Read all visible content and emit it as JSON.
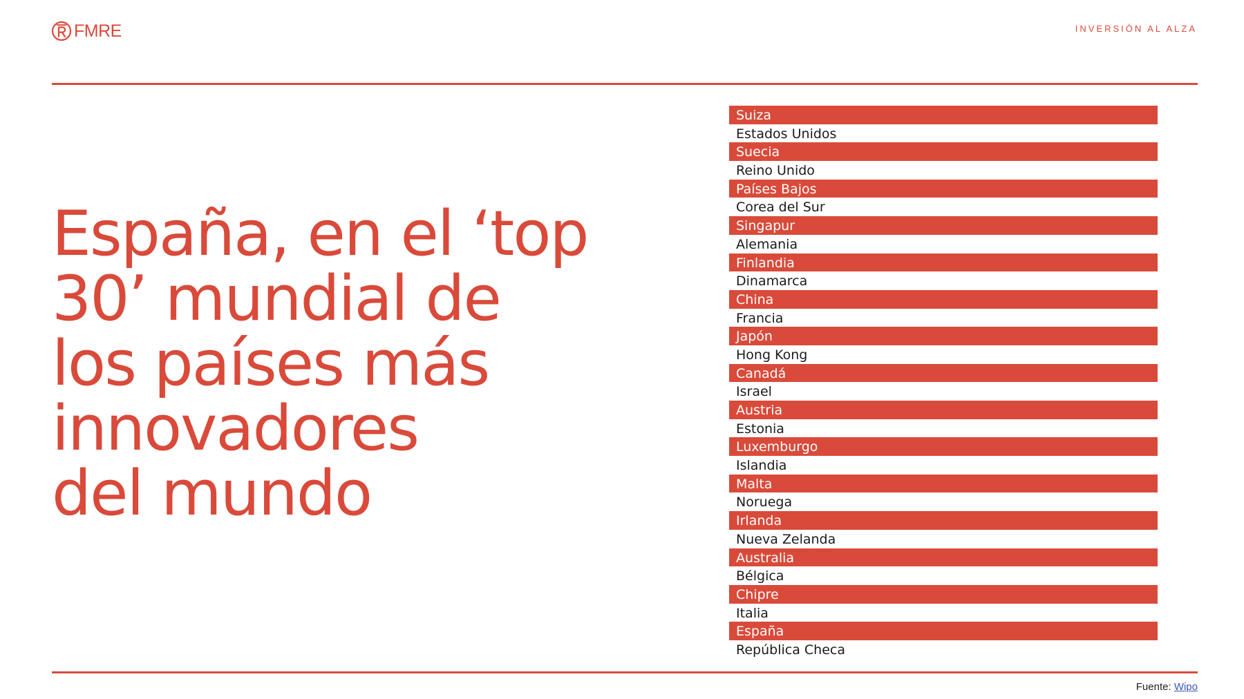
{
  "header": {
    "logo_text": "FMRE",
    "section_label": "INVERSIÓN AL ALZA"
  },
  "headline": "España, en el ‘top\n30’ mundial de\nlos países más\ninnovadores\ndel mundo",
  "ranking": [
    "Suiza",
    "Estados Unidos",
    "Suecia",
    "Reino Unido",
    "Países Bajos",
    "Corea del Sur",
    "Singapur",
    "Alemania",
    "Finlandia",
    "Dinamarca",
    "China",
    "Francia",
    "Japón",
    "Hong Kong",
    "Canadá",
    "Israel",
    "Austria",
    "Estonia",
    "Luxemburgo",
    "Islandia",
    "Malta",
    "Noruega",
    "Irlanda",
    "Nueva Zelanda",
    "Australia",
    "Bélgica",
    "Chipre",
    "Italia",
    "España",
    "República Checa"
  ],
  "footer": {
    "source_label": "Fuente: ",
    "source_link": "Wipo"
  },
  "colors": {
    "accent": "#d94a3a",
    "text": "#1a1a1a",
    "link": "#3b54b8",
    "background": "#ffffff"
  },
  "icons": {
    "logo": "fmre-logo-icon"
  }
}
